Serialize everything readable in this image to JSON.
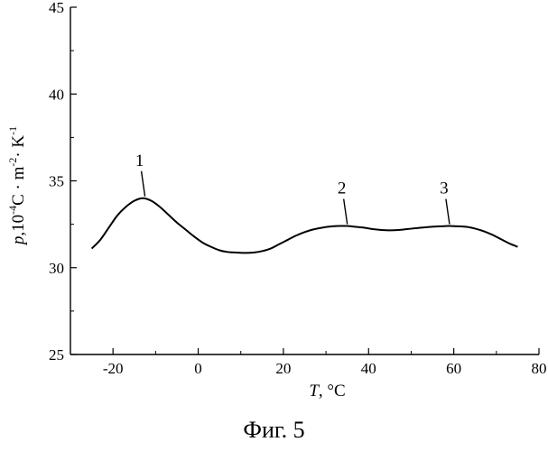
{
  "caption": "Фиг. 5",
  "chart_data": {
    "type": "line",
    "xlabel": {
      "symbol": "T",
      "unit": ", °C"
    },
    "ylabel": {
      "symbol": "p",
      "unit_parts": [
        ",10",
        "-4",
        "C · m",
        "-2",
        "· K",
        "-1"
      ]
    },
    "xlim": [
      -30,
      80
    ],
    "ylim": [
      25,
      45
    ],
    "xticks": [
      -20,
      0,
      20,
      40,
      60,
      80
    ],
    "yticks": [
      25,
      30,
      35,
      40,
      45
    ],
    "grid": false,
    "series": [
      {
        "x": [
          -25,
          -23,
          -21,
          -19,
          -17,
          -15,
          -13,
          -11,
          -9,
          -7,
          -5,
          -3,
          -1,
          1,
          3,
          5,
          7,
          9,
          11,
          13,
          15,
          17,
          19,
          21,
          23,
          25,
          27,
          29,
          31,
          33,
          35,
          37,
          39,
          41,
          43,
          45,
          47,
          49,
          51,
          53,
          55,
          57,
          59,
          61,
          63,
          65,
          67,
          69,
          71,
          73,
          75
        ],
        "y": [
          31.1,
          31.6,
          32.3,
          33.0,
          33.5,
          33.85,
          34.0,
          33.85,
          33.5,
          33.05,
          32.6,
          32.2,
          31.8,
          31.45,
          31.2,
          31.0,
          30.9,
          30.87,
          30.85,
          30.87,
          30.95,
          31.1,
          31.35,
          31.6,
          31.85,
          32.05,
          32.2,
          32.3,
          32.37,
          32.4,
          32.4,
          32.35,
          32.3,
          32.22,
          32.17,
          32.15,
          32.17,
          32.22,
          32.27,
          32.32,
          32.36,
          32.38,
          32.4,
          32.38,
          32.35,
          32.25,
          32.1,
          31.9,
          31.65,
          31.4,
          31.2
        ]
      }
    ],
    "annotations": [
      {
        "label": "1",
        "x": -12.5,
        "y": 34.0
      },
      {
        "label": "2",
        "x": 35,
        "y": 32.4
      },
      {
        "label": "3",
        "x": 59,
        "y": 32.4
      }
    ]
  }
}
